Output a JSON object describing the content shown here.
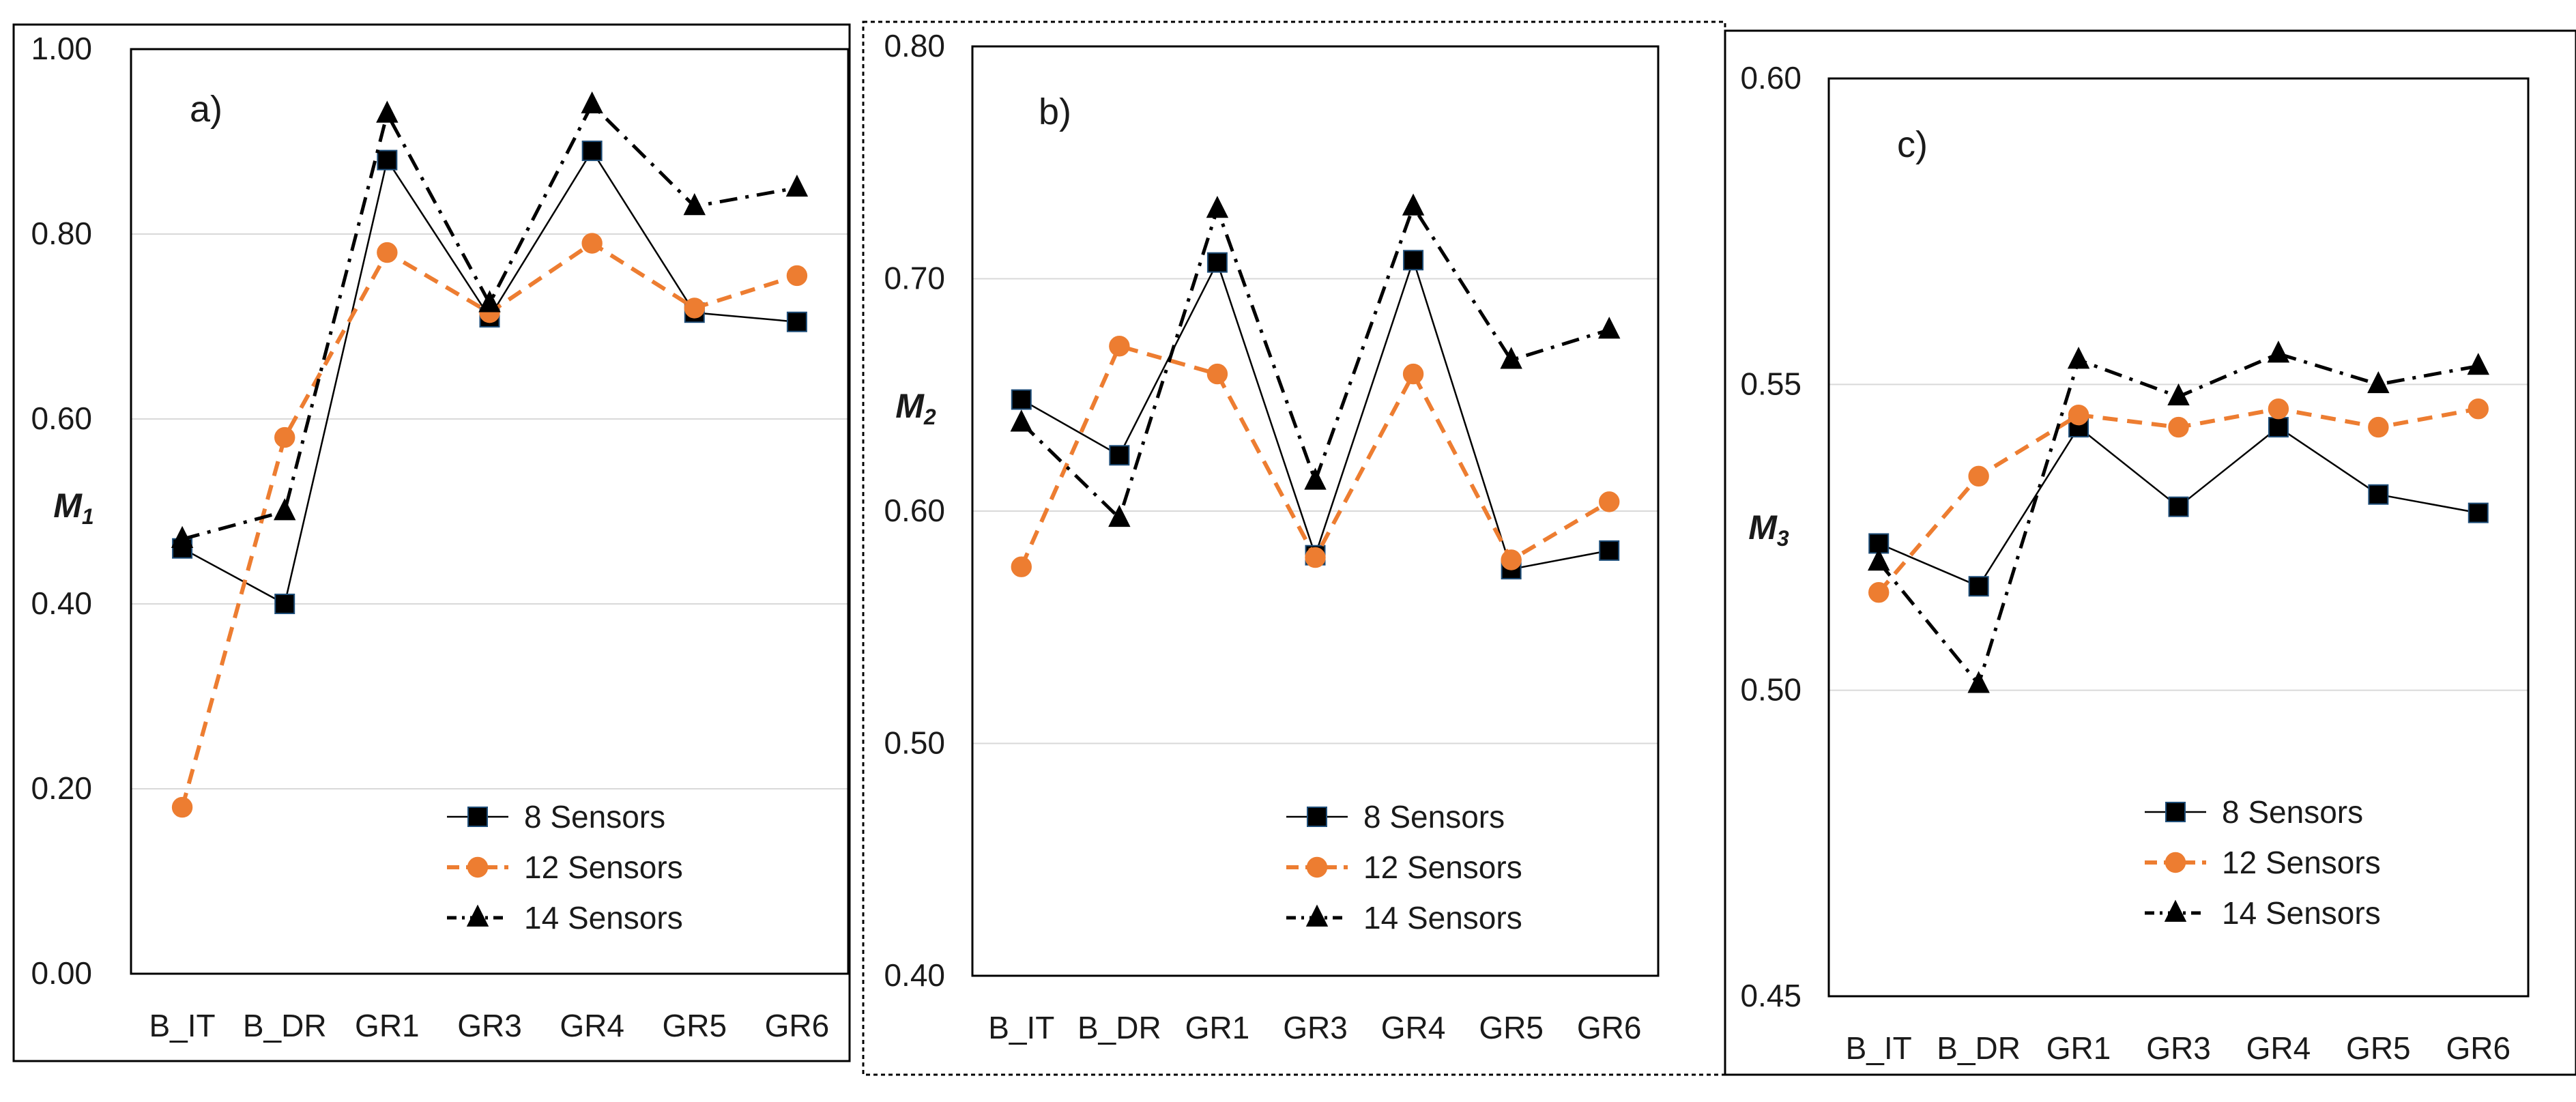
{
  "colors": {
    "s8": "#000000",
    "s12": "#ED7D31",
    "s14": "#000000",
    "grid": "#D9D9D9",
    "frame": "#000000"
  },
  "chart_data": [
    {
      "type": "line",
      "panel_label": "a)",
      "ylabel_main": "M",
      "ylabel_sub": "1",
      "ylim": [
        0.0,
        1.0
      ],
      "yticks": [
        "0.00",
        "0.20",
        "0.40",
        "0.60",
        "0.80",
        "1.00"
      ],
      "categories": [
        "B_IT",
        "B_DR",
        "GR1",
        "GR3",
        "GR4",
        "GR5",
        "GR6"
      ],
      "legend": "bottom-right",
      "series": [
        {
          "name": "8 Sensors",
          "values": [
            0.46,
            0.4,
            0.88,
            0.71,
            0.89,
            0.715,
            0.705
          ]
        },
        {
          "name": "12 Sensors",
          "values": [
            0.18,
            0.58,
            0.78,
            0.715,
            0.79,
            0.72,
            0.755
          ]
        },
        {
          "name": "14 Sensors",
          "values": [
            0.47,
            0.5,
            0.93,
            0.725,
            0.94,
            0.83,
            0.85
          ]
        }
      ]
    },
    {
      "type": "line",
      "panel_label": "b)",
      "ylabel_main": "M",
      "ylabel_sub": "2",
      "ylim": [
        0.4,
        0.8
      ],
      "yticks": [
        "0.40",
        "0.50",
        "0.60",
        "0.70",
        "0.80"
      ],
      "categories": [
        "B_IT",
        "B_DR",
        "GR1",
        "GR3",
        "GR4",
        "GR5",
        "GR6"
      ],
      "legend": "bottom-right",
      "series": [
        {
          "name": "8 Sensors",
          "values": [
            0.648,
            0.624,
            0.707,
            0.581,
            0.708,
            0.575,
            0.583
          ]
        },
        {
          "name": "12 Sensors",
          "values": [
            0.576,
            0.671,
            0.659,
            0.58,
            0.659,
            0.579,
            0.604
          ]
        },
        {
          "name": "14 Sensors",
          "values": [
            0.638,
            0.597,
            0.73,
            0.613,
            0.731,
            0.665,
            0.678
          ]
        }
      ]
    },
    {
      "type": "line",
      "panel_label": "c)",
      "ylabel_main": "M",
      "ylabel_sub": "3",
      "ylim": [
        0.45,
        0.6
      ],
      "yticks": [
        "0.45",
        "0.50",
        "0.55",
        "0.60"
      ],
      "categories": [
        "B_IT",
        "B_DR",
        "GR1",
        "GR3",
        "GR4",
        "GR5",
        "GR6"
      ],
      "legend": "bottom-right",
      "series": [
        {
          "name": "8 Sensors",
          "values": [
            0.524,
            0.517,
            0.543,
            0.53,
            0.543,
            0.532,
            0.529
          ]
        },
        {
          "name": "12 Sensors",
          "values": [
            0.516,
            0.535,
            0.545,
            0.543,
            0.546,
            0.543,
            0.546
          ]
        },
        {
          "name": "14 Sensors",
          "values": [
            0.521,
            0.501,
            0.554,
            0.548,
            0.555,
            0.55,
            0.553
          ]
        }
      ]
    }
  ]
}
